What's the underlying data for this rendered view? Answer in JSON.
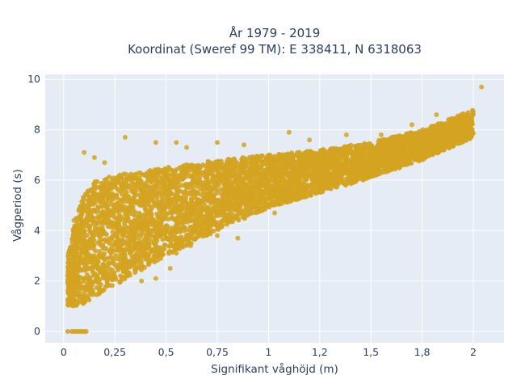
{
  "chart_data": {
    "type": "scatter",
    "title_lines": [
      "År 1979 - 2019",
      "Koordinat (Sweref 99 TM): E 338411, N 6318063"
    ],
    "xlabel": "Signifikant våghöjd (m)",
    "ylabel": "Vågperiod (s)",
    "xlim": [
      -0.09,
      2.15
    ],
    "ylim": [
      -0.45,
      10.2
    ],
    "x_ticks": [
      0,
      0.25,
      0.5,
      0.75,
      1,
      1.25,
      1.5,
      1.75,
      2
    ],
    "x_tick_labels": [
      "0",
      "0,25",
      "0,5",
      "0,75",
      "1",
      "1,2",
      "1,5",
      "1,8",
      "2"
    ],
    "y_ticks": [
      0,
      2,
      4,
      6,
      8,
      10
    ],
    "y_tick_labels": [
      "0",
      "2",
      "4",
      "6",
      "8",
      "10"
    ],
    "grid": true,
    "legend": "none",
    "marker_color": "#D4A421",
    "background_color": "#E5ECF6",
    "series": [
      {
        "density_envelope": [
          {
            "x": 0.02,
            "lower": 1.0,
            "upper": 3.0
          },
          {
            "x": 0.05,
            "lower": 1.0,
            "upper": 4.2
          },
          {
            "x": 0.1,
            "lower": 1.1,
            "upper": 5.5
          },
          {
            "x": 0.15,
            "lower": 1.4,
            "upper": 6.0
          },
          {
            "x": 0.25,
            "lower": 1.8,
            "upper": 6.2
          },
          {
            "x": 0.35,
            "lower": 2.3,
            "upper": 6.3
          },
          {
            "x": 0.5,
            "lower": 3.0,
            "upper": 6.5
          },
          {
            "x": 0.75,
            "lower": 4.0,
            "upper": 6.8
          },
          {
            "x": 1.0,
            "lower": 4.9,
            "upper": 7.0
          },
          {
            "x": 1.25,
            "lower": 5.5,
            "upper": 7.2
          },
          {
            "x": 1.5,
            "lower": 6.1,
            "upper": 7.5
          },
          {
            "x": 1.75,
            "lower": 6.8,
            "upper": 8.0
          },
          {
            "x": 2.0,
            "lower": 7.7,
            "upper": 8.8
          }
        ],
        "zero_period_points": [
          {
            "x": 0.02,
            "y": 0
          },
          {
            "x": 0.04,
            "y": 0
          },
          {
            "x": 0.05,
            "y": 0
          },
          {
            "x": 0.06,
            "y": 0
          },
          {
            "x": 0.07,
            "y": 0
          },
          {
            "x": 0.08,
            "y": 0
          },
          {
            "x": 0.09,
            "y": 0
          },
          {
            "x": 0.1,
            "y": 0
          },
          {
            "x": 0.11,
            "y": 0
          }
        ],
        "outliers": [
          {
            "x": 0.3,
            "y": 7.7
          },
          {
            "x": 0.45,
            "y": 7.5
          },
          {
            "x": 0.55,
            "y": 7.5
          },
          {
            "x": 0.6,
            "y": 7.3
          },
          {
            "x": 0.75,
            "y": 7.5
          },
          {
            "x": 0.88,
            "y": 7.4
          },
          {
            "x": 1.1,
            "y": 7.9
          },
          {
            "x": 1.2,
            "y": 7.6
          },
          {
            "x": 1.38,
            "y": 7.8
          },
          {
            "x": 1.55,
            "y": 7.8
          },
          {
            "x": 1.7,
            "y": 8.2
          },
          {
            "x": 1.82,
            "y": 8.6
          },
          {
            "x": 2.04,
            "y": 9.7
          },
          {
            "x": 0.75,
            "y": 3.8
          },
          {
            "x": 0.85,
            "y": 3.7
          },
          {
            "x": 0.55,
            "y": 3.1
          },
          {
            "x": 0.52,
            "y": 2.5
          },
          {
            "x": 0.45,
            "y": 2.1
          },
          {
            "x": 0.38,
            "y": 2.0
          },
          {
            "x": 0.1,
            "y": 7.1
          },
          {
            "x": 0.15,
            "y": 6.9
          },
          {
            "x": 0.2,
            "y": 6.7
          },
          {
            "x": 0.08,
            "y": 4.5
          },
          {
            "x": 0.05,
            "y": 4.4
          },
          {
            "x": 0.62,
            "y": 3.4
          },
          {
            "x": 1.03,
            "y": 4.7
          }
        ]
      }
    ]
  }
}
